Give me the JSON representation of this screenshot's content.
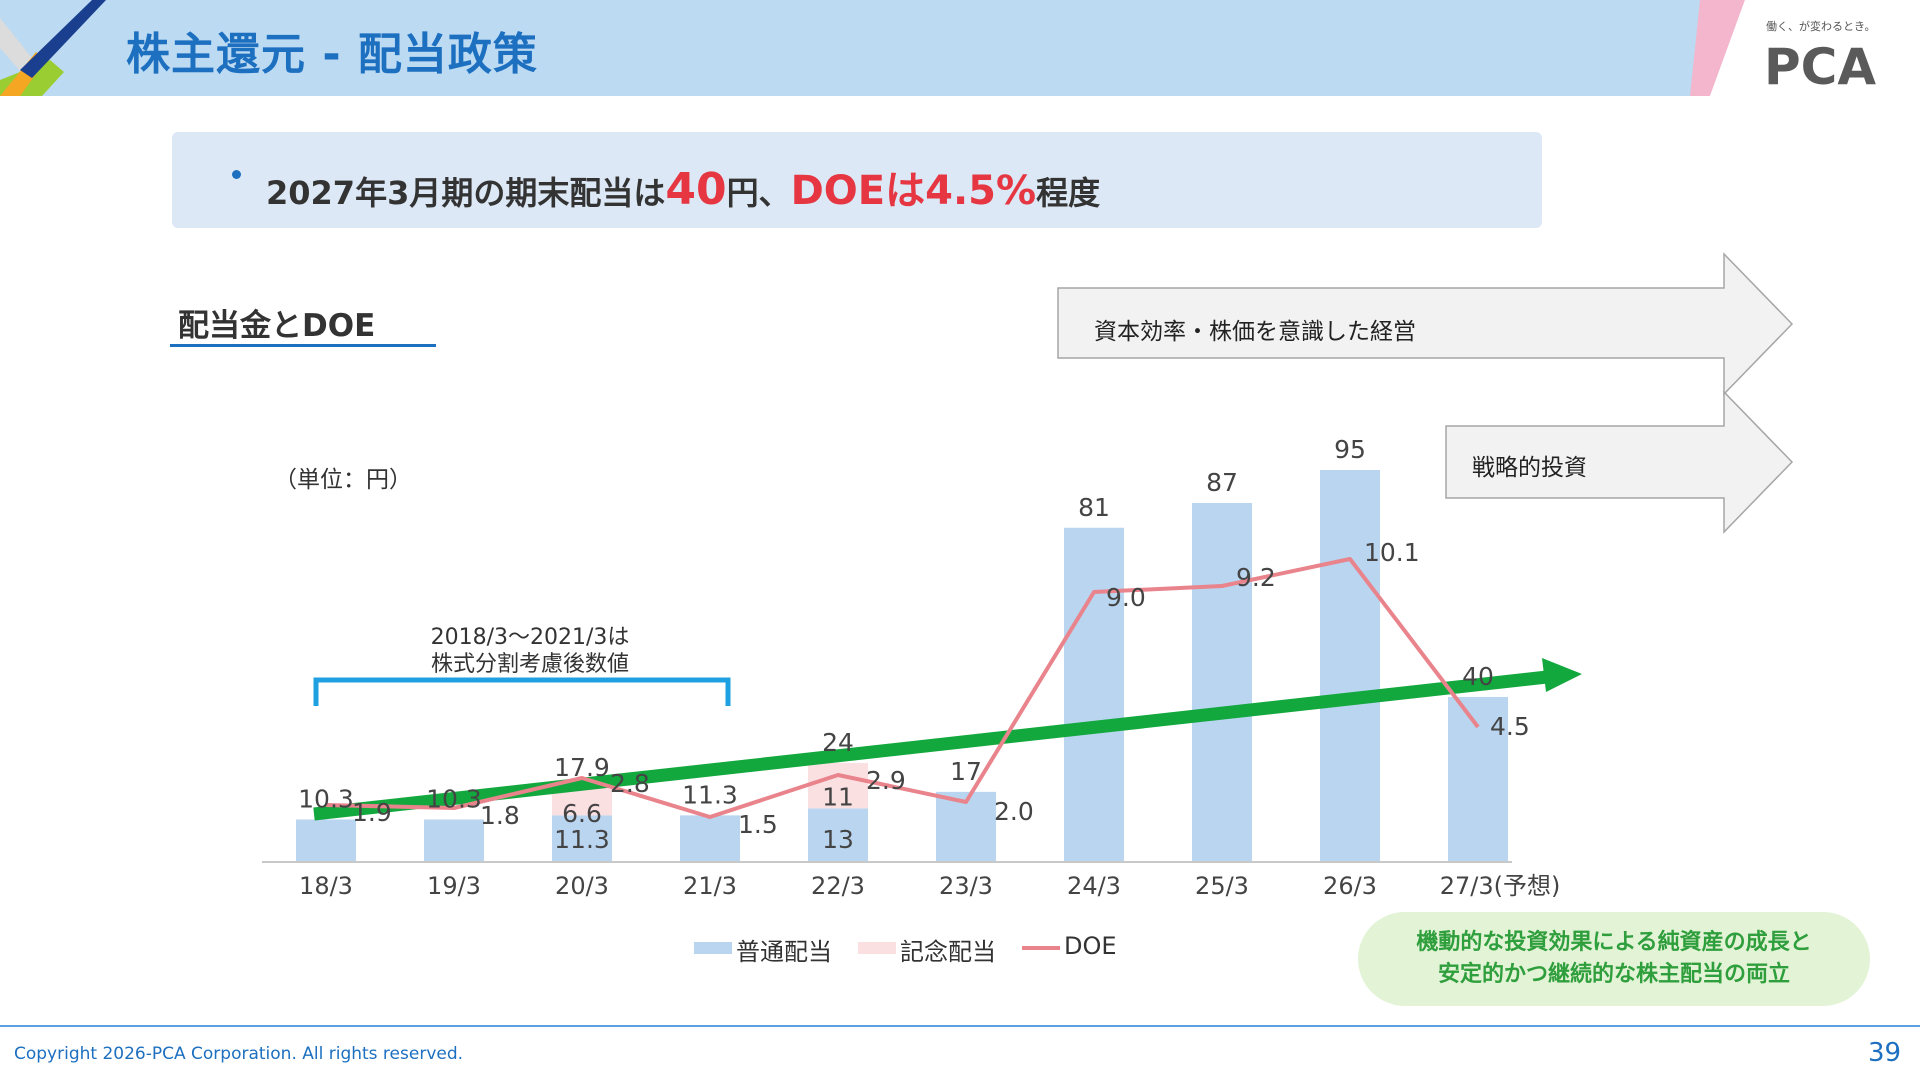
{
  "header": {
    "title": "株主還元 - 配当政策",
    "brand_tagline": "働く、が変わるとき。",
    "brand_name": "PCA"
  },
  "key_message": {
    "prefix": "2027年3月期の期末配当は",
    "amount": "40",
    "mid": "円、",
    "doe": "DOEは4.5%",
    "suffix": "程度"
  },
  "section": {
    "heading": "配当金とDOE",
    "unit": "（単位：円）",
    "split_note_line1": "2018/3～2021/3は",
    "split_note_line2": "株式分割考慮後数値"
  },
  "arrows": {
    "label_1": "資本効率・株価を意識した経営",
    "label_2": "戦略的投資"
  },
  "legend": {
    "ordinary": "普通配当",
    "commemorative": "記念配当",
    "doe": "DOE"
  },
  "growth_message": {
    "line1": "機動的な投資効果による純資産の成長と",
    "line2": "安定的かつ継続的な株主配当の両立"
  },
  "footer": {
    "copyright": "Copyright 2026-PCA Corporation. All rights reserved.",
    "page_number": "39"
  },
  "colors": {
    "brand_blue": "#1d6fc0",
    "ordinary_bar": "#b9d5f0",
    "commemorative_bar": "#fbe0e2",
    "doe_line": "#e9838c",
    "trend_arrow": "#13a83d",
    "highlight_red": "#e53642"
  },
  "chart_data": {
    "type": "bar",
    "categories": [
      "18/3",
      "19/3",
      "20/3",
      "21/3",
      "22/3",
      "23/3",
      "24/3",
      "25/3",
      "26/3",
      "27/3(予想)"
    ],
    "series": [
      {
        "name": "普通配当",
        "stack": "dividend",
        "values": [
          10.3,
          10.3,
          11.3,
          11.3,
          13,
          17,
          81,
          87,
          95,
          40
        ]
      },
      {
        "name": "記念配当",
        "stack": "dividend",
        "values": [
          0,
          0,
          6.6,
          0,
          11,
          0,
          0,
          0,
          0,
          0
        ]
      },
      {
        "name": "DOE",
        "type": "line",
        "values": [
          1.9,
          1.8,
          2.8,
          1.5,
          2.9,
          2.0,
          9.0,
          9.2,
          10.1,
          4.5
        ]
      }
    ],
    "data_labels": {
      "totals": [
        "10.3",
        "10.3",
        "17.9",
        "11.3",
        "24",
        "17",
        "81",
        "87",
        "95",
        "40"
      ],
      "ordinary": [
        "",
        "",
        "11.3",
        "",
        "13",
        "",
        "",
        "",
        "",
        ""
      ],
      "commemorative": [
        "",
        "",
        "6.6",
        "",
        "11",
        "",
        "",
        "",
        "",
        ""
      ],
      "doe": [
        "1.9",
        "1.8",
        "2.8",
        "1.5",
        "2.9",
        "2.0",
        "9.0",
        "9.2",
        "10.1",
        "4.5"
      ]
    },
    "ylim": [
      0,
      100
    ],
    "doe_ylim": [
      0,
      11.8
    ],
    "grid": false,
    "legend_position": "bottom-center",
    "trend_arrow": true
  }
}
